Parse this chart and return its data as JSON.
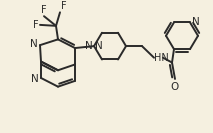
{
  "background_color": "#f5f0e0",
  "bond_color": "#2a2a2a",
  "text_color": "#2a2a2a",
  "bond_lw": 1.4,
  "figsize": [
    2.13,
    1.33
  ],
  "dpi": 100,
  "xlim": [
    0,
    213
  ],
  "ylim": [
    0,
    133
  ]
}
